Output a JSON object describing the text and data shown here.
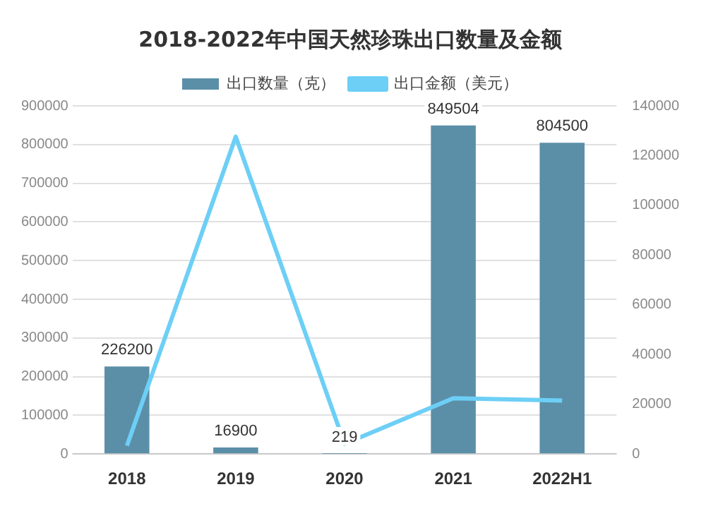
{
  "chart_data": {
    "type": "bar",
    "title": "2018-2022年中国天然珍珠出口数量及金额",
    "categories": [
      "2018",
      "2019",
      "2020",
      "2021",
      "2022H1"
    ],
    "series": [
      {
        "name": "出口数量（克）",
        "color": "#5b8fa8",
        "values": [
          226200,
          16900,
          219,
          849504,
          804500
        ],
        "data_labels": true
      },
      {
        "name": "出口金额（美元）",
        "type": "line",
        "axis": "y2",
        "color": "#6dcff6",
        "values": [
          3300,
          127600,
          4100,
          22400,
          21500
        ]
      }
    ],
    "ylim": [
      0,
      900000
    ],
    "yticks": [
      0,
      100000,
      200000,
      300000,
      400000,
      500000,
      600000,
      700000,
      800000,
      900000
    ],
    "y2lim": [
      0,
      140000
    ],
    "y2ticks": [
      0,
      20000,
      40000,
      60000,
      80000,
      100000,
      120000,
      140000
    ],
    "grid": "y",
    "legend": "top",
    "marker": "none"
  }
}
